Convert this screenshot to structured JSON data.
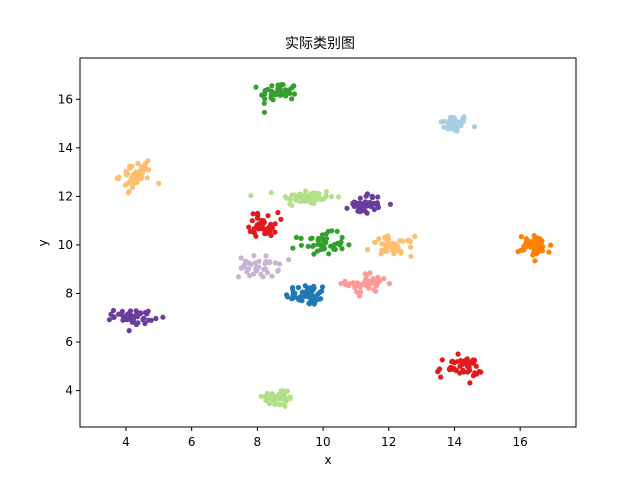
{
  "chart_data": {
    "type": "scatter",
    "title": "实际类别图",
    "xlabel": "x",
    "ylabel": "y",
    "xlim": [
      2.6,
      17.7
    ],
    "ylim": [
      2.5,
      17.7
    ],
    "xticks": [
      4,
      6,
      8,
      10,
      12,
      14,
      16
    ],
    "yticks": [
      4,
      6,
      8,
      10,
      12,
      14,
      16
    ],
    "grid": false,
    "legend": "none",
    "clusters": [
      {
        "color": "#a6cee3",
        "center": [
          14.0,
          15.0
        ],
        "spread": [
          0.22,
          0.18
        ],
        "count": 40
      },
      {
        "color": "#1f78b4",
        "center": [
          9.5,
          7.95
        ],
        "spread": [
          0.32,
          0.22
        ],
        "count": 45
      },
      {
        "color": "#b2df8a",
        "center": [
          9.5,
          11.95
        ],
        "spread": [
          0.42,
          0.18
        ],
        "count": 50
      },
      {
        "color": "#b2df8a",
        "center": [
          8.65,
          3.7
        ],
        "spread": [
          0.25,
          0.2
        ],
        "count": 40
      },
      {
        "color": "#33a02c",
        "center": [
          8.65,
          16.3
        ],
        "spread": [
          0.28,
          0.2
        ],
        "count": 45
      },
      {
        "color": "#33a02c",
        "center": [
          9.95,
          10.05
        ],
        "spread": [
          0.35,
          0.22
        ],
        "count": 45
      },
      {
        "color": "#fb9a99",
        "center": [
          11.35,
          8.4
        ],
        "spread": [
          0.32,
          0.22
        ],
        "count": 45
      },
      {
        "color": "#e31a1c",
        "center": [
          8.2,
          10.85
        ],
        "spread": [
          0.22,
          0.25
        ],
        "count": 40
      },
      {
        "color": "#e31a1c",
        "center": [
          14.15,
          4.95
        ],
        "spread": [
          0.35,
          0.22
        ],
        "count": 45
      },
      {
        "color": "#fdbf6f",
        "center": [
          4.3,
          12.85
        ],
        "spread": [
          0.25,
          0.28
        ],
        "count": 45
      },
      {
        "color": "#fdbf6f",
        "center": [
          12.1,
          9.95
        ],
        "spread": [
          0.32,
          0.2
        ],
        "count": 45
      },
      {
        "color": "#ff7f00",
        "center": [
          16.45,
          9.95
        ],
        "spread": [
          0.25,
          0.22
        ],
        "count": 45
      },
      {
        "color": "#cab2d6",
        "center": [
          8.05,
          9.1
        ],
        "spread": [
          0.3,
          0.22
        ],
        "count": 40
      },
      {
        "color": "#6a3d9a",
        "center": [
          11.3,
          11.7
        ],
        "spread": [
          0.25,
          0.2
        ],
        "count": 40
      },
      {
        "color": "#6a3d9a",
        "center": [
          4.25,
          7.05
        ],
        "spread": [
          0.3,
          0.15
        ],
        "count": 45
      }
    ]
  }
}
